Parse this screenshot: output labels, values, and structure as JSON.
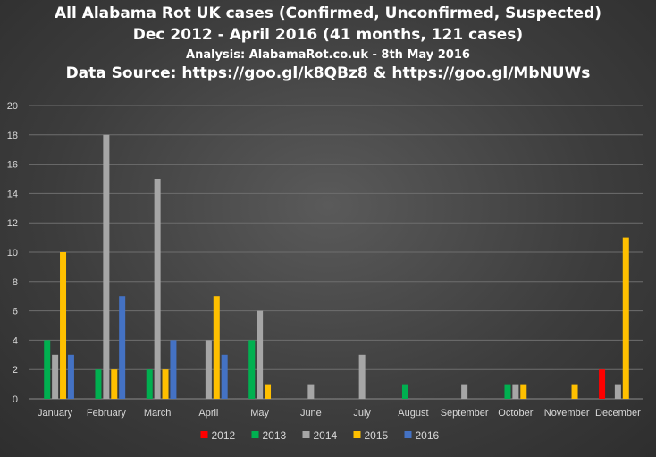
{
  "titles": {
    "line1": "All Alabama Rot UK cases (Confirmed, Unconfirmed, Suspected)",
    "line2": "Dec 2012 - April 2016 (41 months,  121 cases)",
    "line3": "Analysis:  AlabamaRot.co.uk - 8th May 2016",
    "line4": "Data Source: https://goo.gl/k8QBz8 & https://goo.gl/MbNUWs"
  },
  "chart_data": {
    "type": "bar",
    "title": "All Alabama Rot UK cases (Confirmed, Unconfirmed, Suspected)",
    "categories": [
      "January",
      "February",
      "March",
      "April",
      "May",
      "June",
      "July",
      "August",
      "September",
      "October",
      "November",
      "December"
    ],
    "series": [
      {
        "name": "2012",
        "color": "#ff0000",
        "values": [
          0,
          0,
          0,
          0,
          0,
          0,
          0,
          0,
          0,
          0,
          0,
          2
        ]
      },
      {
        "name": "2013",
        "color": "#00b050",
        "values": [
          4,
          2,
          2,
          0,
          4,
          0,
          0,
          1,
          0,
          1,
          0,
          0
        ]
      },
      {
        "name": "2014",
        "color": "#a6a6a6",
        "values": [
          3,
          18,
          15,
          4,
          6,
          1,
          3,
          0,
          1,
          1,
          0,
          1
        ]
      },
      {
        "name": "2015",
        "color": "#ffc000",
        "values": [
          10,
          2,
          2,
          7,
          1,
          0,
          0,
          0,
          0,
          1,
          1,
          11
        ]
      },
      {
        "name": "2016",
        "color": "#4472c4",
        "values": [
          3,
          7,
          4,
          3,
          0,
          0,
          0,
          0,
          0,
          0,
          0,
          0
        ]
      }
    ],
    "ylim": [
      0,
      20
    ],
    "yticks": [
      0,
      2,
      4,
      6,
      8,
      10,
      12,
      14,
      16,
      18,
      20
    ],
    "xlabel": "",
    "ylabel": "",
    "grid": true,
    "legend_position": "bottom"
  }
}
